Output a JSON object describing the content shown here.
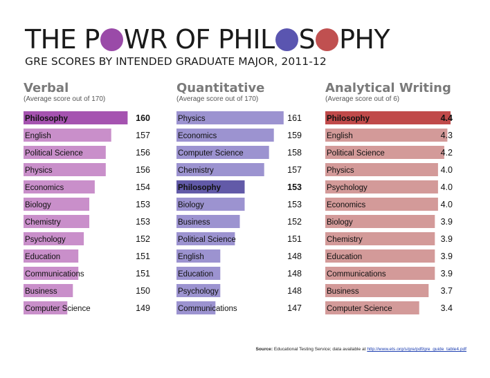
{
  "title_parts": [
    "THE P",
    "W",
    "R OF PHIL",
    "S",
    "PHY"
  ],
  "subtitle": "GRE SCORES BY INTENDED GRADUATE MAJOR, 2011-12",
  "circle_colors": [
    "#9a4aa8",
    "#5a55b0",
    "#c05050"
  ],
  "source": {
    "label": "Source:",
    "text": "Educational Testing Service; data available at",
    "url": "http://www.ets.org/s/gre/pdf/gre_guide_table4.pdf"
  },
  "chart_data": [
    {
      "type": "bar",
      "title": "Verbal",
      "subtitle": "(Average score out of 170)",
      "color": "#c98fca",
      "highlight_color": "#a553b0",
      "highlight": "Philosophy",
      "categories": [
        "Philosophy",
        "English",
        "Political Science",
        "Physics",
        "Economics",
        "Biology",
        "Chemistry",
        "Psychology",
        "Education",
        "Communications",
        "Business",
        "Computer Science"
      ],
      "values": [
        160,
        157,
        156,
        156,
        154,
        153,
        153,
        152,
        151,
        151,
        150,
        149
      ],
      "value_labels": [
        "160",
        "157",
        "156",
        "156",
        "154",
        "153",
        "153",
        "152",
        "151",
        "151",
        "150",
        "149"
      ]
    },
    {
      "type": "bar",
      "title": "Quantitative",
      "subtitle": "(Average score out of 170)",
      "color": "#9c93d0",
      "highlight_color": "#625aa8",
      "highlight": "Philosophy",
      "categories": [
        "Physics",
        "Economics",
        "Computer Science",
        "Chemistry",
        "Philosophy",
        "Biology",
        "Business",
        "Political Science",
        "English",
        "Education",
        "Psychology",
        "Communications"
      ],
      "values": [
        161,
        159,
        158,
        157,
        153,
        153,
        152,
        151,
        148,
        148,
        148,
        147
      ],
      "value_labels": [
        "161",
        "159",
        "158",
        "157",
        "153",
        "153",
        "152",
        "151",
        "148",
        "148",
        "148",
        "147"
      ]
    },
    {
      "type": "bar",
      "title": "Analytical Writing",
      "subtitle": "(Average score out of 6)",
      "color": "#d39a99",
      "highlight_color": "#c04a4a",
      "highlight": "Philosophy",
      "categories": [
        "Philosophy",
        "English",
        "Political Science",
        "Physics",
        "Psychology",
        "Economics",
        "Biology",
        "Chemistry",
        "Education",
        "Communications",
        "Business",
        "Computer Science"
      ],
      "values": [
        4.4,
        4.3,
        4.2,
        4.0,
        4.0,
        4.0,
        3.9,
        3.9,
        3.9,
        3.9,
        3.7,
        3.4
      ],
      "value_labels": [
        "4.4",
        "4.3",
        "4.2",
        "4.0",
        "4.0",
        "4.0",
        "3.9",
        "3.9",
        "3.9",
        "3.9",
        "3.7",
        "3.4"
      ]
    }
  ]
}
